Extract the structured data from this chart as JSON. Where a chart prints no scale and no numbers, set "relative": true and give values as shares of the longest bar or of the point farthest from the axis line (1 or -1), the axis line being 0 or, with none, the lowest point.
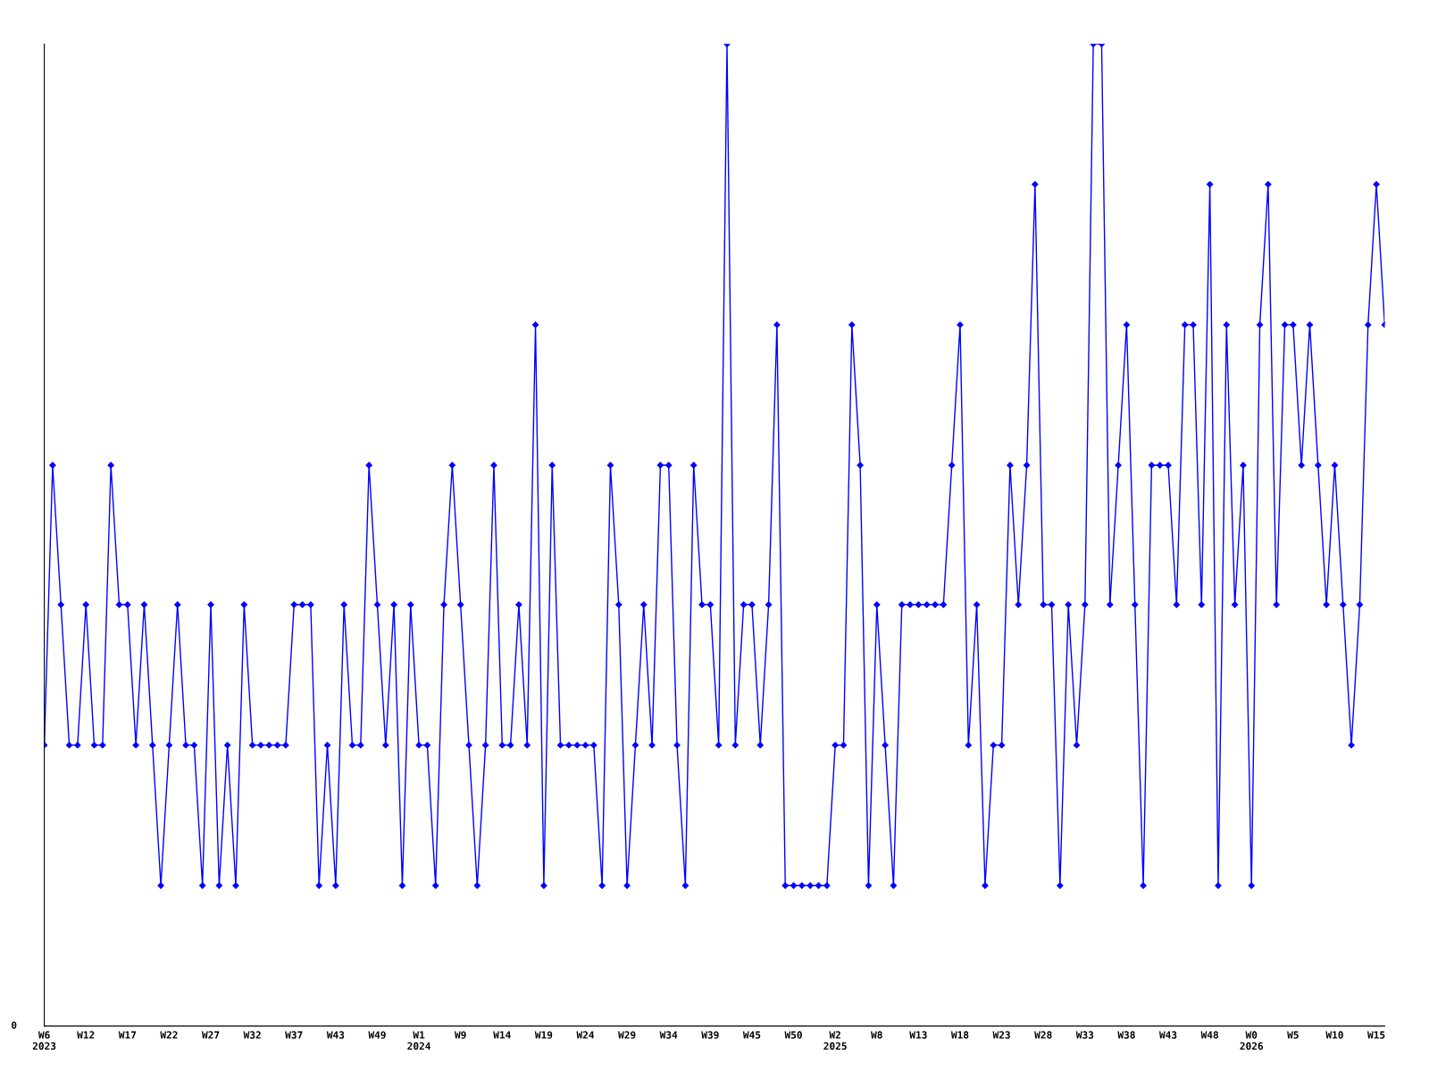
{
  "chart_data": {
    "type": "line",
    "relative": true,
    "color": "#0000ff",
    "marker": "diamond",
    "line_style": "solid",
    "grid": false,
    "legend": false,
    "annotations": [
      "0"
    ],
    "categories": [
      "W6\n2023",
      null,
      null,
      null,
      null,
      "W12",
      null,
      null,
      null,
      null,
      "W17",
      null,
      null,
      null,
      null,
      "W22",
      null,
      null,
      null,
      null,
      "W27",
      null,
      null,
      null,
      null,
      "W32",
      null,
      null,
      null,
      null,
      "W37",
      null,
      null,
      null,
      null,
      "W43",
      null,
      null,
      null,
      null,
      "W49",
      null,
      null,
      null,
      null,
      "W1\n2024",
      null,
      null,
      null,
      null,
      "W9",
      null,
      null,
      null,
      null,
      "W14",
      null,
      null,
      null,
      null,
      "W19",
      null,
      null,
      null,
      null,
      "W24",
      null,
      null,
      null,
      null,
      "W29",
      null,
      null,
      null,
      null,
      "W34",
      null,
      null,
      null,
      null,
      "W39",
      null,
      null,
      null,
      null,
      "W45",
      null,
      null,
      null,
      null,
      "W50",
      null,
      null,
      null,
      null,
      "W2\n2025",
      null,
      null,
      null,
      null,
      "W8",
      null,
      null,
      null,
      null,
      "W13",
      null,
      null,
      null,
      null,
      "W18",
      null,
      null,
      null,
      null,
      "W23",
      null,
      null,
      null,
      null,
      "W28",
      null,
      null,
      null,
      null,
      "W33",
      null,
      null,
      null,
      null,
      "W38",
      null,
      null,
      null,
      null,
      "W43",
      null,
      null,
      null,
      null,
      "W48",
      null,
      null,
      null,
      null,
      "W0\n2026",
      null,
      null,
      null,
      null,
      "W5",
      null,
      null,
      null,
      null,
      "W10",
      null,
      null,
      null,
      null,
      "W15",
      null
    ],
    "values": [
      0.286,
      0.571,
      0.429,
      0.286,
      0.286,
      0.429,
      0.286,
      0.286,
      0.571,
      0.429,
      0.429,
      0.286,
      0.429,
      0.286,
      0.143,
      0.286,
      0.429,
      0.286,
      0.286,
      0.143,
      0.429,
      0.143,
      0.286,
      0.143,
      0.429,
      0.286,
      0.286,
      0.286,
      0.286,
      0.286,
      0.429,
      0.429,
      0.429,
      0.143,
      0.286,
      0.143,
      0.429,
      0.286,
      0.286,
      0.571,
      0.429,
      0.286,
      0.429,
      0.143,
      0.429,
      0.286,
      0.286,
      0.143,
      0.429,
      0.571,
      0.429,
      0.286,
      0.143,
      0.286,
      0.571,
      0.286,
      0.286,
      0.429,
      0.286,
      0.714,
      0.143,
      0.571,
      0.286,
      0.286,
      0.286,
      0.286,
      0.286,
      0.143,
      0.571,
      0.429,
      0.143,
      0.286,
      0.429,
      0.286,
      0.571,
      0.571,
      0.286,
      0.143,
      0.571,
      0.429,
      0.429,
      0.286,
      1,
      0.286,
      0.429,
      0.429,
      0.286,
      0.429,
      0.714,
      0.143,
      0.143,
      0.143,
      0.143,
      0.143,
      0.143,
      0.286,
      0.286,
      0.714,
      0.571,
      0.143,
      0.429,
      0.286,
      0.143,
      0.429,
      0.429,
      0.429,
      0.429,
      0.429,
      0.429,
      0.571,
      0.714,
      0.286,
      0.429,
      0.143,
      0.286,
      0.286,
      0.571,
      0.429,
      0.571,
      0.857,
      0.429,
      0.429,
      0.143,
      0.429,
      0.286,
      0.429,
      1,
      1,
      0.429,
      0.571,
      0.714,
      0.429,
      0.143,
      0.571,
      0.571,
      0.571,
      0.429,
      0.714,
      0.714,
      0.429,
      0.857,
      0.143,
      0.714,
      0.429,
      0.571,
      0.143,
      0.714,
      0.857,
      0.429,
      0.714,
      0.714,
      0.571,
      0.714,
      0.571,
      0.429,
      0.571,
      0.429,
      0.286,
      0.429,
      0.714,
      0.857,
      0.714
    ]
  }
}
